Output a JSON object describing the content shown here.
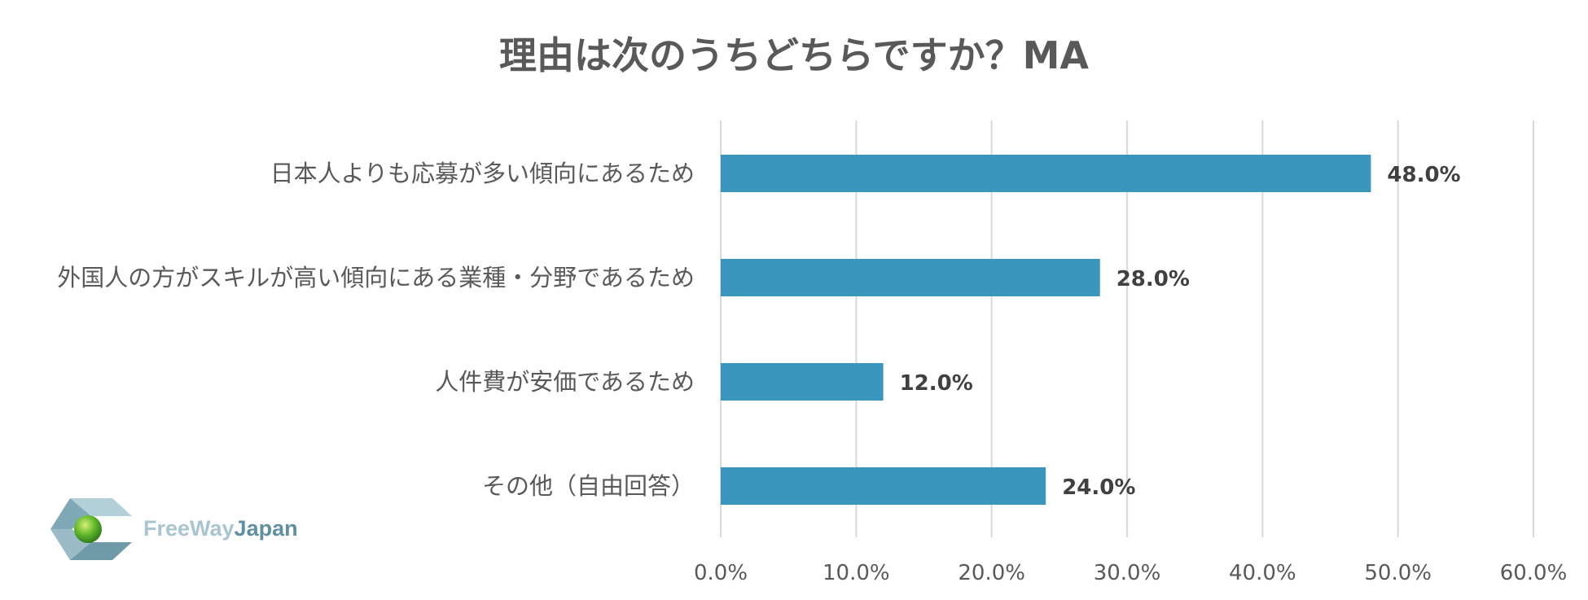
{
  "chart_data": {
    "type": "bar",
    "orientation": "horizontal",
    "title": "理由は次のうちどちらですか？MA",
    "categories": [
      "日本人よりも応募が多い傾向にあるため",
      "外国人の方がスキルが高い傾向にある業種・分野であるため",
      "人件費が安価であるため",
      "その他（自由回答）"
    ],
    "values": [
      48.0,
      28.0,
      12.0,
      24.0
    ],
    "data_labels": [
      "48.0%",
      "28.0%",
      "12.0%",
      "24.0%"
    ],
    "xlim": [
      0,
      60
    ],
    "x_ticks": [
      "0.0%",
      "10.0%",
      "20.0%",
      "30.0%",
      "40.0%",
      "50.0%",
      "60.0%"
    ],
    "grid": "vertical",
    "bar_color": "#3a96bd",
    "legend": "none"
  },
  "logo": {
    "part1": "FreeWay",
    "part2": "Japan"
  }
}
